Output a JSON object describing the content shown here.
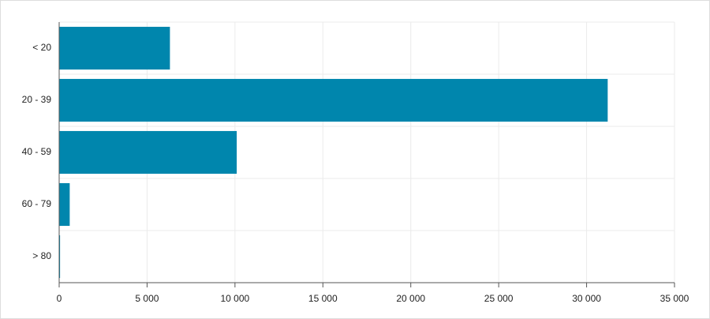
{
  "chart_data": {
    "type": "hbar",
    "categories": [
      "< 20",
      "20 - 39",
      "40 - 59",
      "60 - 79",
      "> 80"
    ],
    "values": [
      6300,
      31200,
      10100,
      600,
      50
    ],
    "color": "#0086ad",
    "xlim": [
      0,
      35000
    ],
    "xticks": [
      0,
      {
        "value": 5000,
        "label": "5 000"
      },
      {
        "value": 10000,
        "label": "10 000"
      },
      {
        "value": 15000,
        "label": "15 000"
      },
      {
        "value": 20000,
        "label": "20 000"
      },
      {
        "value": 25000,
        "label": "25 000"
      },
      {
        "value": 30000,
        "label": "30 000"
      },
      {
        "value": 35000,
        "label": "35 000"
      }
    ],
    "grid": true
  }
}
